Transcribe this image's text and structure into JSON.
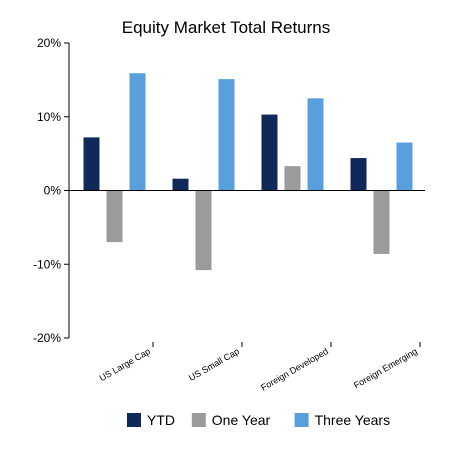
{
  "chart_data": {
    "type": "bar",
    "title": "Equity Market Total Returns",
    "categories": [
      "US Large Cap",
      "US Small Cap",
      "Foreign Developed",
      "Foreign Emerging"
    ],
    "series": [
      {
        "name": "YTD",
        "values": [
          7.2,
          1.6,
          10.3,
          4.4
        ],
        "color": "#0f2a5a"
      },
      {
        "name": "One Year",
        "values": [
          -7.0,
          -10.8,
          3.3,
          -8.6
        ],
        "color": "#9b9b9b"
      },
      {
        "name": "Three Years",
        "values": [
          15.9,
          15.1,
          12.5,
          6.5
        ],
        "color": "#5a9fdd"
      }
    ],
    "ylim": [
      -20,
      20
    ],
    "yticks": [
      20,
      10,
      0,
      -10,
      -20
    ],
    "ytick_labels": [
      "20%",
      "10%",
      "0%",
      "-10%",
      "-20%"
    ],
    "grid": false,
    "legend_position": "bottom"
  }
}
